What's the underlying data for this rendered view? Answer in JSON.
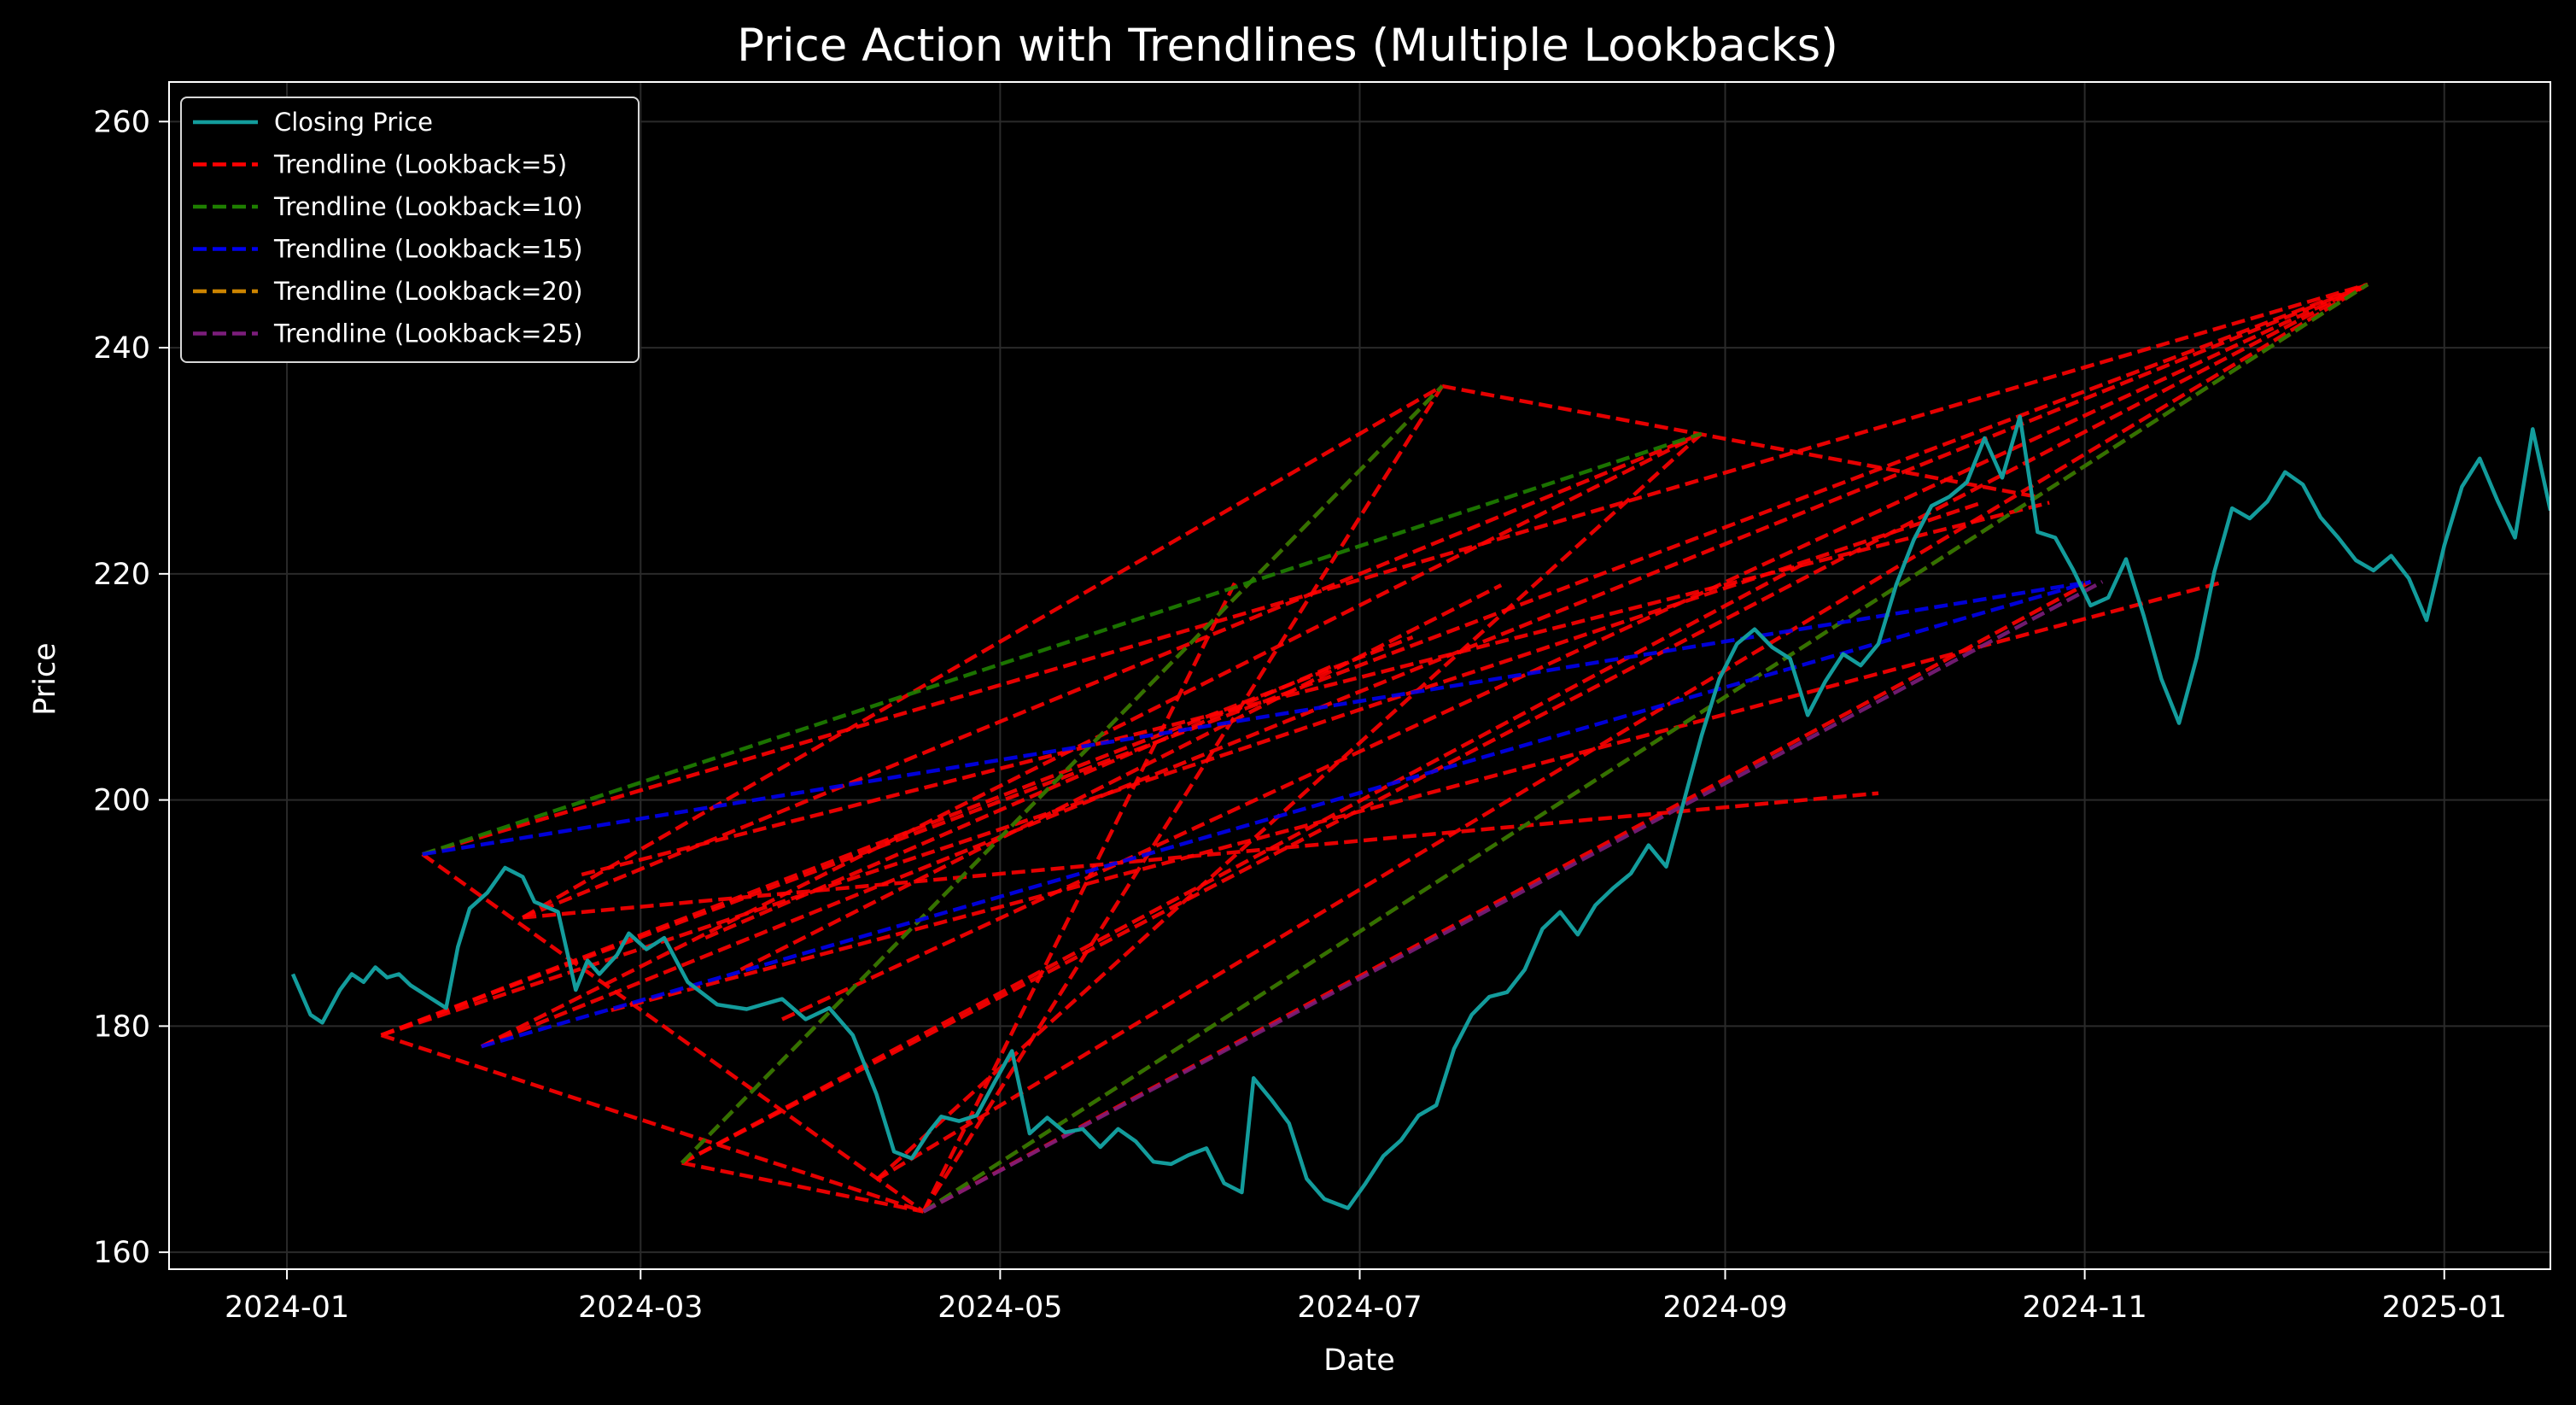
{
  "chart_data": {
    "type": "line",
    "title": "Price Action with Trendlines (Multiple Lookbacks)",
    "xlabel": "Date",
    "ylabel": "Price",
    "x_ticks": [
      "2024-01",
      "2024-03",
      "2024-05",
      "2024-07",
      "2024-09",
      "2024-11",
      "2025-01"
    ],
    "y_ticks": [
      160,
      180,
      200,
      220,
      240,
      260
    ],
    "xlim": [
      "2023-12-12",
      "2025-01-19"
    ],
    "ylim": [
      158.5,
      263.5
    ],
    "grid": true,
    "legend_position": "top-left",
    "background": "#000000",
    "series": [
      {
        "name": "Closing Price",
        "style": "solid",
        "color": "#139c9c",
        "points": [
          [
            "2024-01-02",
            184.6
          ],
          [
            "2024-01-05",
            181.0
          ],
          [
            "2024-01-07",
            180.3
          ],
          [
            "2024-01-10",
            183.2
          ],
          [
            "2024-01-12",
            184.6
          ],
          [
            "2024-01-14",
            183.9
          ],
          [
            "2024-01-16",
            185.2
          ],
          [
            "2024-01-18",
            184.3
          ],
          [
            "2024-01-20",
            184.6
          ],
          [
            "2024-01-22",
            183.6
          ],
          [
            "2024-01-25",
            182.6
          ],
          [
            "2024-01-28",
            181.6
          ],
          [
            "2024-01-30",
            187.0
          ],
          [
            "2024-02-01",
            190.4
          ],
          [
            "2024-02-04",
            191.8
          ],
          [
            "2024-02-07",
            194.0
          ],
          [
            "2024-02-10",
            193.2
          ],
          [
            "2024-02-12",
            191.0
          ],
          [
            "2024-02-16",
            190.1
          ],
          [
            "2024-02-19",
            183.2
          ],
          [
            "2024-02-21",
            185.8
          ],
          [
            "2024-02-23",
            184.6
          ],
          [
            "2024-02-26",
            186.3
          ],
          [
            "2024-02-28",
            188.2
          ],
          [
            "2024-03-02",
            186.8
          ],
          [
            "2024-03-05",
            187.8
          ],
          [
            "2024-03-09",
            183.9
          ],
          [
            "2024-03-14",
            181.9
          ],
          [
            "2024-03-19",
            181.5
          ],
          [
            "2024-03-25",
            182.4
          ],
          [
            "2024-03-29",
            180.6
          ],
          [
            "2024-04-02",
            181.6
          ],
          [
            "2024-04-06",
            179.2
          ],
          [
            "2024-04-10",
            174.0
          ],
          [
            "2024-04-13",
            168.9
          ],
          [
            "2024-04-16",
            168.3
          ],
          [
            "2024-04-19",
            170.7
          ],
          [
            "2024-04-21",
            172.0
          ],
          [
            "2024-04-24",
            171.6
          ],
          [
            "2024-04-27",
            172.1
          ],
          [
            "2024-04-30",
            175.0
          ],
          [
            "2024-05-03",
            177.8
          ],
          [
            "2024-05-06",
            170.5
          ],
          [
            "2024-05-09",
            171.9
          ],
          [
            "2024-05-12",
            170.6
          ],
          [
            "2024-05-15",
            170.9
          ],
          [
            "2024-05-18",
            169.3
          ],
          [
            "2024-05-21",
            170.9
          ],
          [
            "2024-05-24",
            169.8
          ],
          [
            "2024-05-27",
            168.0
          ],
          [
            "2024-05-30",
            167.8
          ],
          [
            "2024-06-02",
            168.6
          ],
          [
            "2024-06-05",
            169.2
          ],
          [
            "2024-06-08",
            166.1
          ],
          [
            "2024-06-11",
            165.3
          ],
          [
            "2024-06-13",
            175.4
          ],
          [
            "2024-06-16",
            173.5
          ],
          [
            "2024-06-19",
            171.4
          ],
          [
            "2024-06-22",
            166.5
          ],
          [
            "2024-06-25",
            164.7
          ],
          [
            "2024-06-29",
            163.9
          ],
          [
            "2024-07-02",
            166.1
          ],
          [
            "2024-07-05",
            168.5
          ],
          [
            "2024-07-08",
            169.9
          ],
          [
            "2024-07-11",
            172.1
          ],
          [
            "2024-07-14",
            173.0
          ],
          [
            "2024-07-17",
            178.0
          ],
          [
            "2024-07-20",
            181.0
          ],
          [
            "2024-07-23",
            182.6
          ],
          [
            "2024-07-26",
            183.0
          ],
          [
            "2024-07-29",
            185.0
          ],
          [
            "2024-08-01",
            188.6
          ],
          [
            "2024-08-04",
            190.1
          ],
          [
            "2024-08-07",
            188.1
          ],
          [
            "2024-08-10",
            190.7
          ],
          [
            "2024-08-13",
            192.2
          ],
          [
            "2024-08-16",
            193.5
          ],
          [
            "2024-08-19",
            196.0
          ],
          [
            "2024-08-22",
            194.1
          ],
          [
            "2024-08-25",
            199.9
          ],
          [
            "2024-08-28",
            205.7
          ],
          [
            "2024-08-31",
            210.7
          ],
          [
            "2024-09-03",
            213.8
          ],
          [
            "2024-09-06",
            215.1
          ],
          [
            "2024-09-09",
            213.5
          ],
          [
            "2024-09-12",
            212.5
          ],
          [
            "2024-09-15",
            207.5
          ],
          [
            "2024-09-18",
            210.5
          ],
          [
            "2024-09-21",
            212.9
          ],
          [
            "2024-09-24",
            211.9
          ],
          [
            "2024-09-27",
            213.8
          ],
          [
            "2024-09-30",
            219.0
          ],
          [
            "2024-10-03",
            223.0
          ],
          [
            "2024-10-06",
            226.0
          ],
          [
            "2024-10-09",
            226.8
          ],
          [
            "2024-10-12",
            228.1
          ],
          [
            "2024-10-15",
            232.0
          ],
          [
            "2024-10-18",
            228.5
          ],
          [
            "2024-10-21",
            233.9
          ],
          [
            "2024-10-24",
            223.7
          ],
          [
            "2024-10-27",
            223.2
          ],
          [
            "2024-10-30",
            220.4
          ],
          [
            "2024-11-02",
            217.2
          ],
          [
            "2024-11-05",
            217.9
          ],
          [
            "2024-11-08",
            221.3
          ],
          [
            "2024-11-11",
            216.3
          ],
          [
            "2024-11-14",
            210.7
          ],
          [
            "2024-11-17",
            206.8
          ],
          [
            "2024-11-20",
            212.6
          ],
          [
            "2024-11-23",
            220.2
          ],
          [
            "2024-11-26",
            225.8
          ],
          [
            "2024-11-29",
            224.9
          ],
          [
            "2024-12-02",
            226.4
          ],
          [
            "2024-12-05",
            229.0
          ],
          [
            "2024-12-08",
            227.9
          ],
          [
            "2024-12-11",
            225.0
          ],
          [
            "2024-12-14",
            223.2
          ],
          [
            "2024-12-17",
            221.2
          ],
          [
            "2024-12-20",
            220.3
          ],
          [
            "2024-12-23",
            221.6
          ],
          [
            "2024-12-26",
            219.6
          ],
          [
            "2024-12-29",
            215.9
          ],
          [
            "2025-01-01",
            222.5
          ],
          [
            "2025-01-04",
            227.7
          ],
          [
            "2025-01-07",
            230.2
          ],
          [
            "2025-01-10",
            226.5
          ],
          [
            "2025-01-13",
            223.2
          ],
          [
            "2025-01-16",
            232.8
          ],
          [
            "2025-01-19",
            225.6
          ]
        ]
      },
      {
        "name": "Trendline (Lookback=5)",
        "style": "dashed",
        "color": "#ff0000",
        "segments": [
          [
            [
              "2024-01-17",
              179.2
            ],
            [
              "2024-12-19",
              245.6
            ]
          ],
          [
            [
              "2024-01-17",
              179.2
            ],
            [
              "2024-04-18",
              163.6
            ]
          ],
          [
            [
              "2024-01-24",
              195.2
            ],
            [
              "2024-04-18",
              163.6
            ]
          ],
          [
            [
              "2024-01-24",
              195.2
            ],
            [
              "2024-12-19",
              245.6
            ]
          ],
          [
            [
              "2024-02-03",
              178.2
            ],
            [
              "2024-12-19",
              245.6
            ]
          ],
          [
            [
              "2024-02-10",
              189.6
            ],
            [
              "2024-08-28",
              232.4
            ]
          ],
          [
            [
              "2024-03-08",
              167.9
            ],
            [
              "2024-07-15",
              236.6
            ]
          ],
          [
            [
              "2024-03-08",
              167.9
            ],
            [
              "2024-04-18",
              163.6
            ]
          ],
          [
            [
              "2024-03-08",
              167.9
            ],
            [
              "2024-12-19",
              245.6
            ]
          ],
          [
            [
              "2024-04-10",
              166.4
            ],
            [
              "2024-08-28",
              232.4
            ]
          ],
          [
            [
              "2024-04-10",
              166.4
            ],
            [
              "2024-12-19",
              245.6
            ]
          ],
          [
            [
              "2024-04-18",
              163.6
            ],
            [
              "2024-12-19",
              245.6
            ]
          ],
          [
            [
              "2024-04-18",
              163.6
            ],
            [
              "2024-07-15",
              236.6
            ]
          ],
          [
            [
              "2024-04-18",
              163.6
            ],
            [
              "2024-11-02",
              219.3
            ]
          ],
          [
            [
              "2024-02-10",
              189.6
            ],
            [
              "2024-07-15",
              236.6
            ]
          ],
          [
            [
              "2024-07-15",
              236.6
            ],
            [
              "2024-10-24",
              226.8
            ]
          ],
          [
            [
              "2024-02-20",
              193.4
            ],
            [
              "2024-10-26",
              226.3
            ]
          ],
          [
            [
              "2024-01-17",
              179.2
            ],
            [
              "2024-10-14",
              226.2
            ]
          ],
          [
            [
              "2024-03-08",
              167.9
            ],
            [
              "2024-09-14",
              220.8
            ]
          ],
          [
            [
              "2024-02-03",
              178.2
            ],
            [
              "2024-08-28",
              232.4
            ]
          ],
          [
            [
              "2024-04-18",
              163.6
            ],
            [
              "2024-06-10",
              219.4
            ]
          ],
          [
            [
              "2024-02-10",
              189.6
            ],
            [
              "2024-09-27",
              200.6
            ]
          ],
          [
            [
              "2024-03-12",
              187.8
            ],
            [
              "2024-06-27",
              212.0
            ]
          ],
          [
            [
              "2024-03-18",
              185.0
            ],
            [
              "2024-07-25",
              219.0
            ]
          ],
          [
            [
              "2024-02-25",
              181.4
            ],
            [
              "2024-11-24",
              219.2
            ]
          ],
          [
            [
              "2024-03-25",
              180.6
            ],
            [
              "2024-12-19",
              245.6
            ]
          ],
          [
            [
              "2024-01-17",
              179.2
            ],
            [
              "2024-07-10",
              214.4
            ]
          ]
        ]
      },
      {
        "name": "Trendline (Lookback=10)",
        "style": "dashed",
        "color": "#1e7f00",
        "segments": [
          [
            [
              "2024-01-24",
              195.2
            ],
            [
              "2024-08-28",
              232.4
            ]
          ],
          [
            [
              "2024-03-08",
              167.9
            ],
            [
              "2024-07-15",
              236.6
            ]
          ],
          [
            [
              "2024-04-18",
              163.6
            ],
            [
              "2024-12-19",
              245.6
            ]
          ]
        ]
      },
      {
        "name": "Trendline (Lookback=15)",
        "style": "dashed",
        "color": "#0000ee",
        "segments": [
          [
            [
              "2024-01-24",
              195.2
            ],
            [
              "2024-11-02",
              219.3
            ]
          ],
          [
            [
              "2024-02-03",
              178.2
            ],
            [
              "2024-11-02",
              219.3
            ]
          ]
        ]
      },
      {
        "name": "Trendline (Lookback=20)",
        "style": "dashed",
        "color": "#cc8400",
        "segments": []
      },
      {
        "name": "Trendline (Lookback=25)",
        "style": "dashed",
        "color": "#7b1d7b",
        "segments": [
          [
            [
              "2024-04-18",
              163.6
            ],
            [
              "2024-11-04",
              219.3
            ]
          ]
        ]
      }
    ]
  }
}
